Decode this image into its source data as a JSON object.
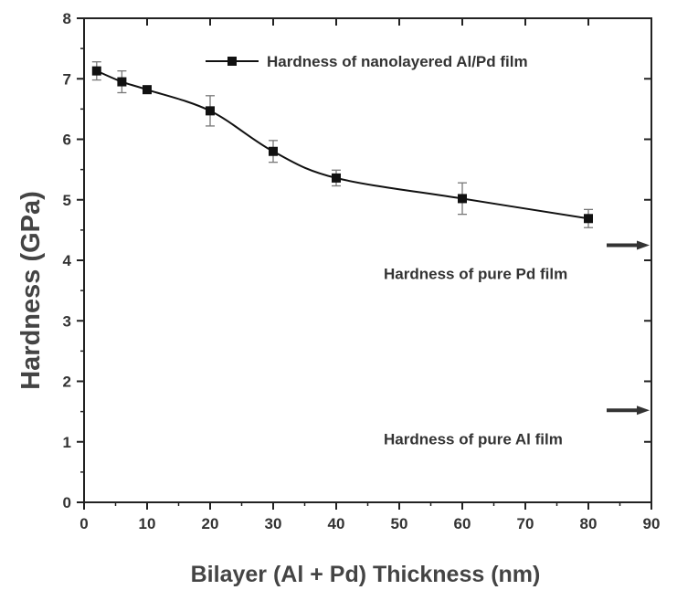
{
  "chart_data": {
    "type": "line",
    "xlabel": "Bilayer (Al + Pd) Thickness (nm)",
    "ylabel": "Hardness (GPa)",
    "xlim": [
      0,
      90
    ],
    "ylim": [
      0,
      8
    ],
    "xticks": [
      0,
      10,
      20,
      30,
      40,
      50,
      60,
      70,
      80,
      90
    ],
    "yticks": [
      0,
      1,
      2,
      3,
      4,
      5,
      6,
      7,
      8
    ],
    "grid": false,
    "legend_position": "top-right",
    "series": [
      {
        "name": "Hardness of nanolayered Al/Pd film",
        "marker": "square",
        "color": "#111111",
        "x": [
          2,
          6,
          10,
          20,
          30,
          40,
          60,
          80
        ],
        "y": [
          7.13,
          6.95,
          6.82,
          6.47,
          5.8,
          5.36,
          5.02,
          4.69
        ],
        "error": [
          0.15,
          0.18,
          0.06,
          0.25,
          0.18,
          0.13,
          0.26,
          0.15
        ]
      }
    ],
    "annotations": [
      {
        "id": "pd",
        "text": "Hardness of pure Pd film",
        "arrow_y": 4.25
      },
      {
        "id": "al",
        "text": "Hardness of pure Al film",
        "arrow_y": 1.52
      }
    ]
  }
}
